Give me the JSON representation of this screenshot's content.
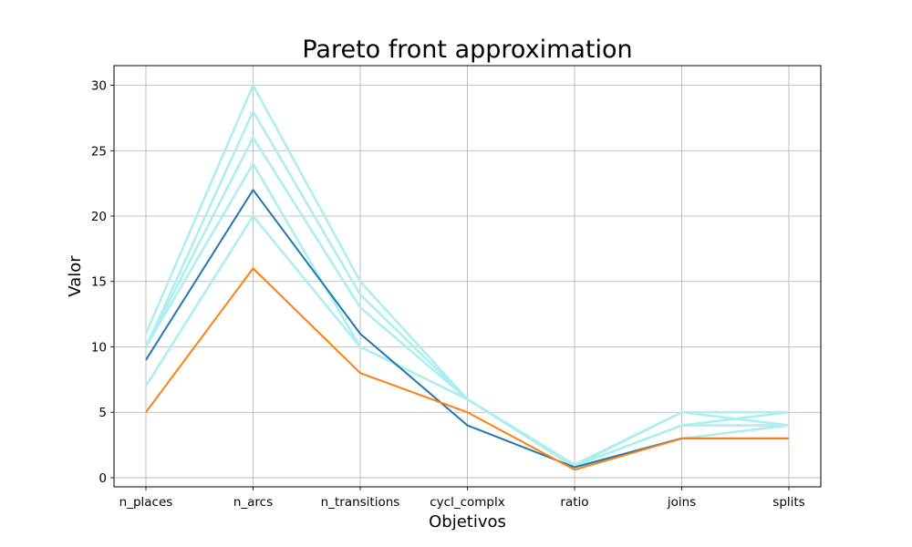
{
  "chart_data": {
    "type": "line",
    "title": "Pareto front approximation",
    "xlabel": "Objetivos",
    "ylabel": "Valor",
    "categories": [
      "n_places",
      "n_arcs",
      "n_transitions",
      "cycl_complx",
      "ratio",
      "joins",
      "splits"
    ],
    "ylim": [
      -0.7,
      31.5
    ],
    "yticks": [
      0,
      5,
      10,
      15,
      20,
      25,
      30
    ],
    "grid": true,
    "colors": {
      "background_series": "#afeeee",
      "highlight_1": "#1f77b4",
      "highlight_2": "#ff7f0e"
    },
    "series": [
      {
        "values": [
          11,
          30,
          15,
          6,
          1.0,
          5,
          5
        ],
        "color": "#afeeee"
      },
      {
        "values": [
          10,
          28,
          14,
          6,
          0.9,
          5,
          4
        ],
        "color": "#afeeee"
      },
      {
        "values": [
          10,
          26,
          13,
          6,
          0.9,
          4,
          4
        ],
        "color": "#afeeee"
      },
      {
        "values": [
          10,
          24,
          10,
          6,
          0.9,
          4,
          5
        ],
        "color": "#afeeee"
      },
      {
        "values": [
          7,
          20,
          10,
          6,
          0.8,
          3,
          4
        ],
        "color": "#afeeee"
      },
      {
        "values": [
          9,
          22,
          11,
          4,
          0.8,
          3,
          3
        ],
        "color": "#1f77b4"
      },
      {
        "values": [
          5,
          16,
          8,
          5,
          0.6,
          3,
          3
        ],
        "color": "#ff7f0e"
      }
    ]
  }
}
